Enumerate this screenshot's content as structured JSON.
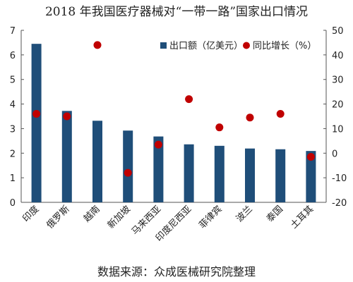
{
  "chart_data": {
    "type": "bar",
    "title": "2018 年我国医疗器械对“一带一路”国家出口情况",
    "source": "数据来源：众成医械研究院整理",
    "categories": [
      "印度",
      "俄罗斯",
      "越南",
      "新加坡",
      "马来西亚",
      "印度尼西亚",
      "菲律宾",
      "波兰",
      "泰国",
      "土耳其"
    ],
    "series": [
      {
        "name": "出口额（亿美元）",
        "type": "bar",
        "axis": "left",
        "color": "#1f4e79",
        "values": [
          6.45,
          3.72,
          3.32,
          2.92,
          2.68,
          2.36,
          2.3,
          2.19,
          2.16,
          2.09
        ]
      },
      {
        "name": "同比增长（%）",
        "type": "scatter",
        "axis": "right",
        "color": "#c00000",
        "values": [
          16,
          15,
          44,
          -8,
          3.5,
          22,
          10.5,
          14.5,
          16,
          -1.5
        ]
      }
    ],
    "left_axis": {
      "min": 0,
      "max": 7,
      "ticks": [
        "0",
        "1",
        "2",
        "3",
        "4",
        "5",
        "6",
        "7"
      ]
    },
    "right_axis": {
      "min": -20,
      "max": 50,
      "ticks": [
        "-20",
        "-10",
        "0",
        "10",
        "20",
        "30",
        "40",
        "50"
      ]
    },
    "grid": false,
    "legend_position": "top-right"
  }
}
